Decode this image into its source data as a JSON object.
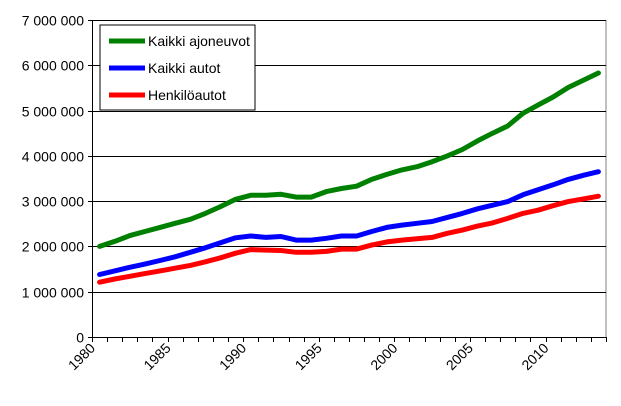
{
  "chart_data": {
    "type": "line",
    "title": "",
    "xlabel": "",
    "ylabel": "",
    "ylim": [
      0,
      7000000
    ],
    "yticks": [
      "0",
      "1 000 000",
      "2 000 000",
      "3 000 000",
      "4 000 000",
      "5 000 000",
      "6 000 000",
      "7 000 000"
    ],
    "ytick_values": [
      0,
      1000000,
      2000000,
      3000000,
      4000000,
      5000000,
      6000000,
      7000000
    ],
    "xticks": [
      "1980",
      "1985",
      "1990",
      "1995",
      "2000",
      "2005",
      "2010"
    ],
    "grid": "horizontal",
    "legend_position": "top-left",
    "x": [
      1980,
      1981,
      1982,
      1983,
      1984,
      1985,
      1986,
      1987,
      1988,
      1989,
      1990,
      1991,
      1992,
      1993,
      1994,
      1995,
      1996,
      1997,
      1998,
      1999,
      2000,
      2001,
      2002,
      2003,
      2004,
      2005,
      2006,
      2007,
      2008,
      2009,
      2010,
      2011,
      2012,
      2013
    ],
    "series": [
      {
        "name": "Kaikki ajoneuvot",
        "color": "#008000",
        "values": [
          2000000,
          2110000,
          2240000,
          2330000,
          2420000,
          2510000,
          2600000,
          2730000,
          2880000,
          3040000,
          3130000,
          3130000,
          3150000,
          3090000,
          3090000,
          3210000,
          3280000,
          3330000,
          3480000,
          3590000,
          3690000,
          3760000,
          3870000,
          4000000,
          4140000,
          4330000,
          4500000,
          4660000,
          4940000,
          5120000,
          5300000,
          5510000,
          5670000,
          5830000
        ]
      },
      {
        "name": "Kaikki autot",
        "color": "#0000ff",
        "values": [
          1380000,
          1460000,
          1540000,
          1610000,
          1690000,
          1770000,
          1870000,
          1970000,
          2080000,
          2190000,
          2230000,
          2200000,
          2220000,
          2140000,
          2140000,
          2180000,
          2230000,
          2230000,
          2330000,
          2420000,
          2470000,
          2510000,
          2550000,
          2640000,
          2730000,
          2830000,
          2910000,
          2990000,
          3140000,
          3250000,
          3360000,
          3480000,
          3570000,
          3650000
        ]
      },
      {
        "name": "Henkilöautot",
        "color": "#ff0000",
        "values": [
          1210000,
          1280000,
          1340000,
          1400000,
          1460000,
          1520000,
          1580000,
          1660000,
          1750000,
          1850000,
          1930000,
          1920000,
          1910000,
          1870000,
          1870000,
          1890000,
          1940000,
          1940000,
          2030000,
          2100000,
          2140000,
          2170000,
          2200000,
          2290000,
          2360000,
          2450000,
          2520000,
          2620000,
          2730000,
          2800000,
          2900000,
          2990000,
          3050000,
          3110000
        ]
      }
    ]
  }
}
